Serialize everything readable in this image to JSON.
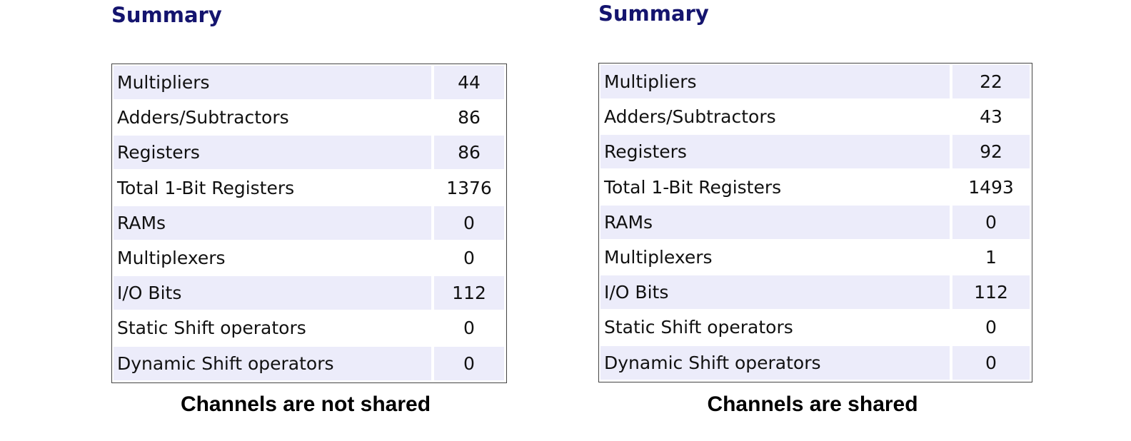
{
  "panels": [
    {
      "title": "Summary",
      "rows": [
        [
          "Multipliers",
          44
        ],
        [
          "Adders/Subtractors",
          86
        ],
        [
          "Registers",
          86
        ],
        [
          "Total 1-Bit Registers",
          1376
        ],
        [
          "RAMs",
          0
        ],
        [
          "Multiplexers",
          0
        ],
        [
          "I/O Bits",
          112
        ],
        [
          "Static Shift operators",
          0
        ],
        [
          "Dynamic Shift operators",
          0
        ]
      ],
      "caption": "Channels are not shared"
    },
    {
      "title": "Summary",
      "rows": [
        [
          "Multipliers",
          22
        ],
        [
          "Adders/Subtractors",
          43
        ],
        [
          "Registers",
          92
        ],
        [
          "Total 1-Bit Registers",
          1493
        ],
        [
          "RAMs",
          0
        ],
        [
          "Multiplexers",
          1
        ],
        [
          "I/O Bits",
          112
        ],
        [
          "Static Shift operators",
          0
        ],
        [
          "Dynamic Shift operators",
          0
        ]
      ],
      "caption": "Channels are shared"
    }
  ]
}
